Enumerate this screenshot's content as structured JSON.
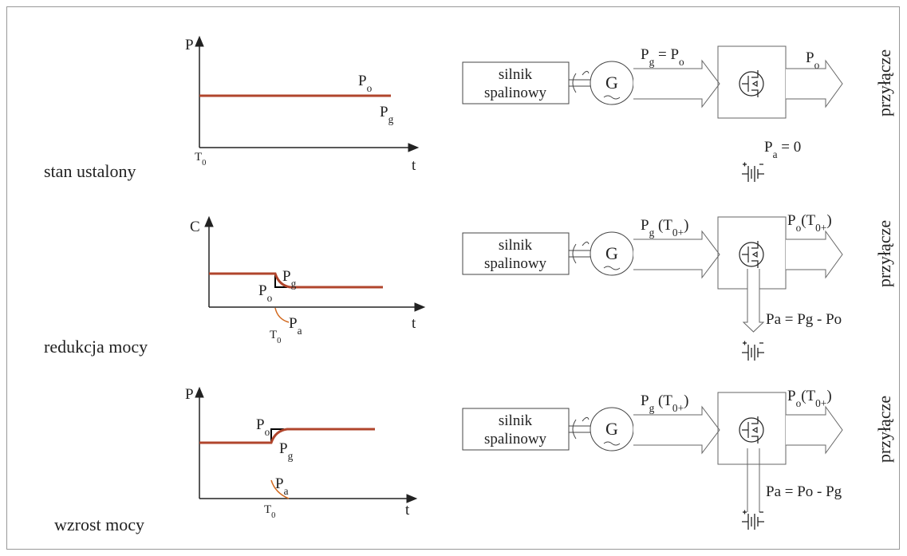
{
  "rows": [
    {
      "label": "stan ustalony",
      "graph": {
        "y_axis": "P",
        "x_axis": "t",
        "t0": [
          "T",
          "0"
        ],
        "curves": [
          [
            "P",
            "o"
          ],
          [
            "P",
            "g"
          ]
        ]
      },
      "diagram": {
        "engine": [
          "silnik",
          "spalinowy"
        ],
        "generator": "G",
        "generator_flow": [
          "P",
          "g",
          " = P",
          "o"
        ],
        "grid_flow": [
          "P",
          "o"
        ],
        "grid": "przyłącze",
        "battery_flow": [
          "P",
          "a",
          " = 0"
        ]
      }
    },
    {
      "label": "redukcja mocy",
      "graph": {
        "y_axis": "C",
        "x_axis": "t",
        "t0": [
          "T",
          "0"
        ],
        "curves": [
          [
            "P",
            "o"
          ],
          [
            "P",
            "g"
          ],
          [
            "P",
            "a"
          ]
        ]
      },
      "diagram": {
        "engine": [
          "silnik",
          "spalinowy"
        ],
        "generator": "G",
        "generator_flow": [
          "P",
          "g",
          " (T",
          "0+",
          ")"
        ],
        "grid_flow": [
          "P",
          "o",
          "(T",
          "0+",
          ")"
        ],
        "grid": "przyłącze",
        "battery_flow": [
          "Pa = Pg - Po"
        ]
      }
    },
    {
      "label": "wzrost mocy",
      "graph": {
        "y_axis": "P",
        "x_axis": "t",
        "t0": [
          "T",
          "0"
        ],
        "curves": [
          [
            "P",
            "o"
          ],
          [
            "P",
            "g"
          ],
          [
            "P",
            "a"
          ]
        ]
      },
      "diagram": {
        "engine": [
          "silnik",
          "spalinowy"
        ],
        "generator": "G",
        "generator_flow": [
          "P",
          "g",
          " (T",
          "0+",
          ")"
        ],
        "grid_flow": [
          "P",
          "o",
          "(T",
          "0+",
          ")"
        ],
        "grid": "przyłącze",
        "battery_flow": [
          "Pa = Po - Pg"
        ]
      }
    }
  ]
}
